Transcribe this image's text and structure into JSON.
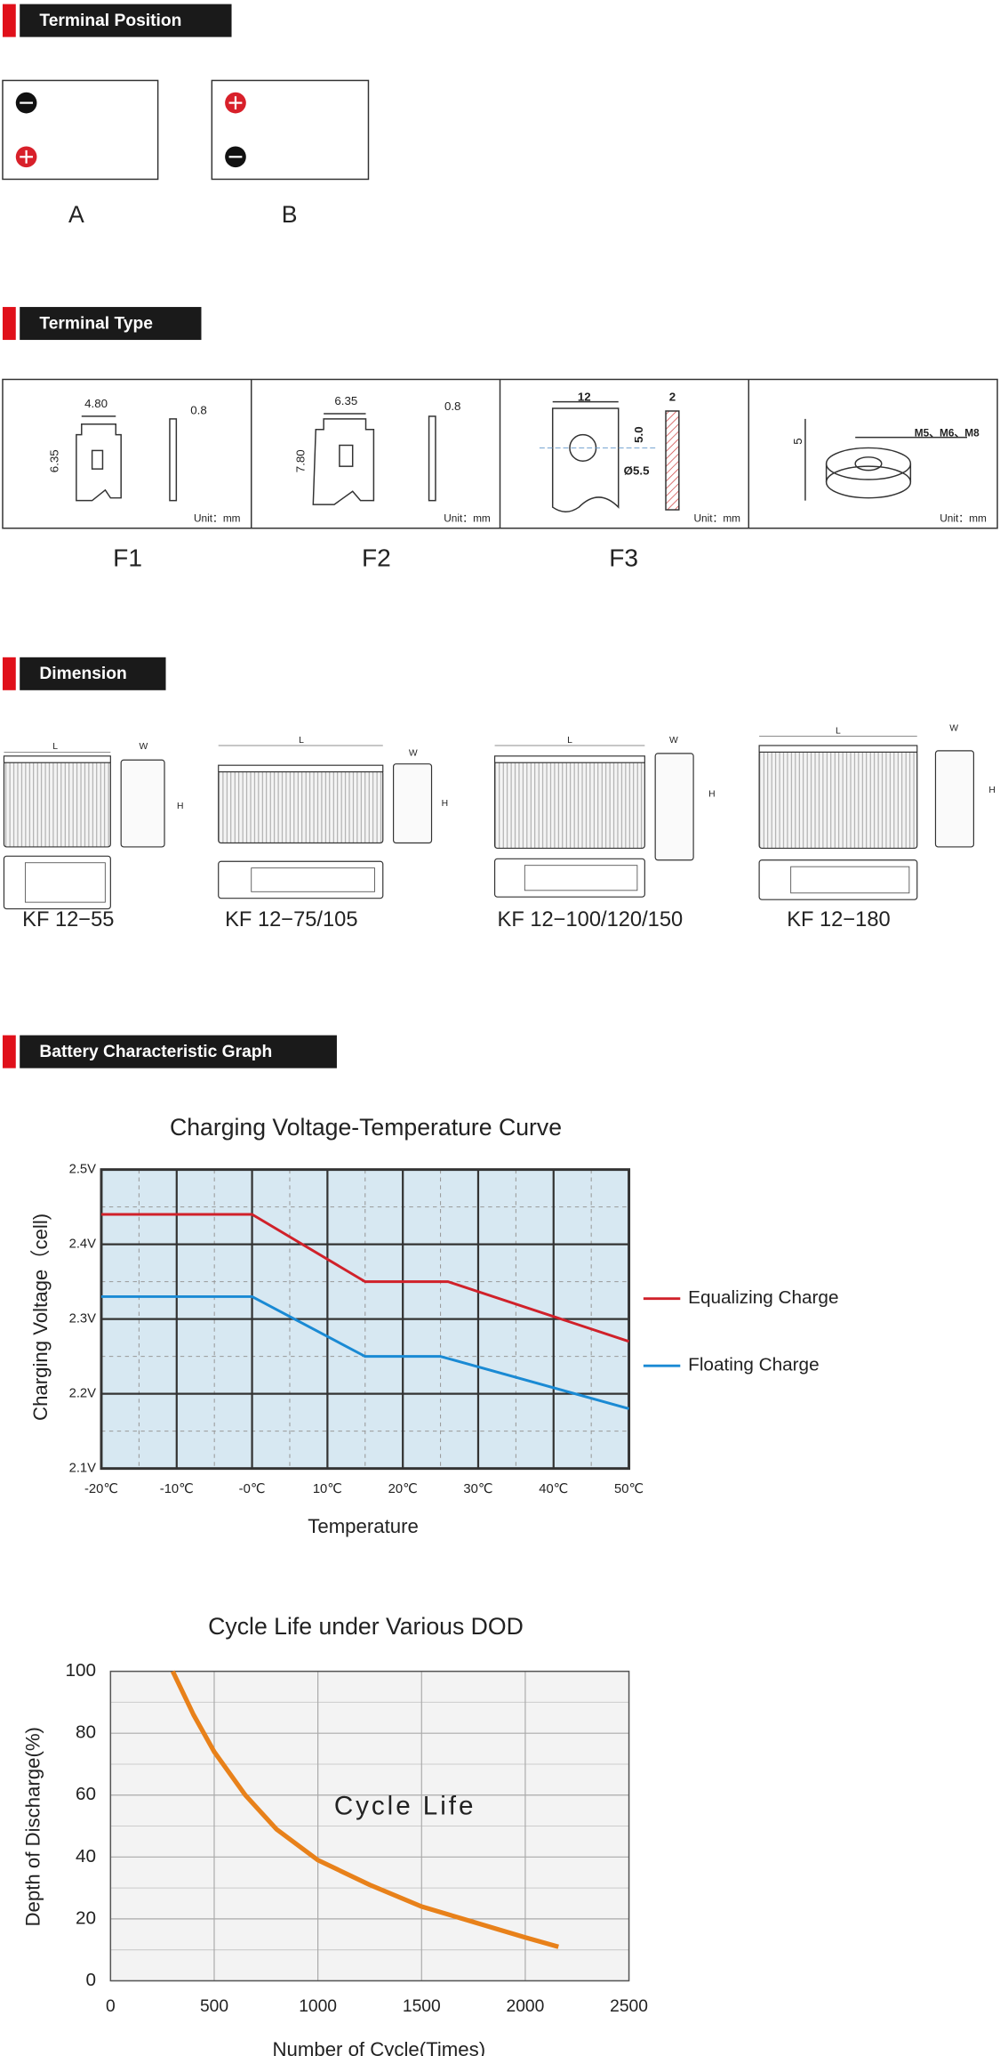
{
  "sections": [
    {
      "title": "Terminal Position"
    },
    {
      "title": "Terminal Type"
    },
    {
      "title": "Dimension"
    },
    {
      "title": "Battery Characteristic Graph"
    }
  ],
  "terminal_position": {
    "labels": [
      "A",
      "B"
    ]
  },
  "terminal_type": {
    "unit": "Unit：mm",
    "items": [
      {
        "label": "F1",
        "dims": [
          "4.80",
          "0.8",
          "6.35"
        ]
      },
      {
        "label": "F2",
        "dims": [
          "6.35",
          "0.8",
          "7.80"
        ]
      },
      {
        "label": "F3",
        "dims": [
          "12",
          "2",
          "5.0",
          "Ø5.5"
        ]
      },
      {
        "label": "",
        "dims": [
          "5",
          "M5、M6、M8"
        ]
      }
    ]
  },
  "dimension": {
    "drawing_labels": [
      "L",
      "W",
      "H"
    ],
    "models": [
      "KF 12−55",
      "KF 12−75/105",
      "KF 12−100/120/150",
      "KF 12−180"
    ]
  },
  "chart_data": [
    {
      "type": "line",
      "title": "Charging Voltage-Temperature Curve",
      "x_label": "Temperature",
      "y_label": "Charging Voltage（cell)",
      "xlim": [
        -20,
        50
      ],
      "xticks": [
        {
          "value": -20,
          "label": "-20℃"
        },
        {
          "value": -10,
          "label": "-10℃"
        },
        {
          "value": 0,
          "label": "-0℃"
        },
        {
          "value": 10,
          "label": "10℃"
        },
        {
          "value": 20,
          "label": "20℃"
        },
        {
          "value": 30,
          "label": "30℃"
        },
        {
          "value": 40,
          "label": "40℃"
        },
        {
          "value": 50,
          "label": "50℃"
        }
      ],
      "ylim": [
        2.1,
        2.5
      ],
      "yticks": [
        {
          "value": 2.1,
          "label": "2.1V"
        },
        {
          "value": 2.2,
          "label": "2.2V"
        },
        {
          "value": 2.3,
          "label": "2.3V"
        },
        {
          "value": 2.4,
          "label": "2.4V"
        },
        {
          "value": 2.5,
          "label": "2.5V"
        }
      ],
      "minor_xticks": [
        -15,
        -5,
        5,
        15,
        25,
        35,
        45
      ],
      "minor_yticks": [
        2.15,
        2.25,
        2.35,
        2.45
      ],
      "grid": true,
      "legend": "right",
      "background": "#d7e8f2",
      "series": [
        {
          "name": "Equalizing Charge",
          "color": "#d0212a",
          "x": [
            -20,
            0,
            15,
            26,
            50
          ],
          "values": [
            2.44,
            2.44,
            2.35,
            2.35,
            2.27
          ]
        },
        {
          "name": "Floating Charge",
          "color": "#1a8ad4",
          "x": [
            -20,
            0,
            15,
            25,
            50
          ],
          "values": [
            2.33,
            2.33,
            2.25,
            2.25,
            2.18
          ]
        }
      ]
    },
    {
      "type": "line",
      "title": "Cycle Life under Various DOD",
      "x_label": "Number of Cycle(Times)",
      "y_label": "Depth of Discharge(%)",
      "xlim": [
        0,
        2500
      ],
      "xticks": [
        0,
        500,
        1000,
        1500,
        2000,
        2500
      ],
      "ylim": [
        0,
        100
      ],
      "yticks": [
        0,
        20,
        40,
        60,
        80,
        100
      ],
      "minor_xticks": [],
      "minor_yticks": [
        10,
        30,
        50,
        70,
        90
      ],
      "grid": true,
      "background": "#f3f3f3",
      "annotations": [
        {
          "text": "Cycle Life",
          "x": 1420,
          "y": 56
        }
      ],
      "series": [
        {
          "color": "#e8811a",
          "x": [
            300,
            400,
            500,
            650,
            800,
            1000,
            1250,
            1500,
            1750,
            2000,
            2160
          ],
          "values": [
            100,
            86,
            74,
            60,
            49,
            39,
            31,
            24,
            19,
            14,
            11
          ]
        }
      ]
    }
  ]
}
